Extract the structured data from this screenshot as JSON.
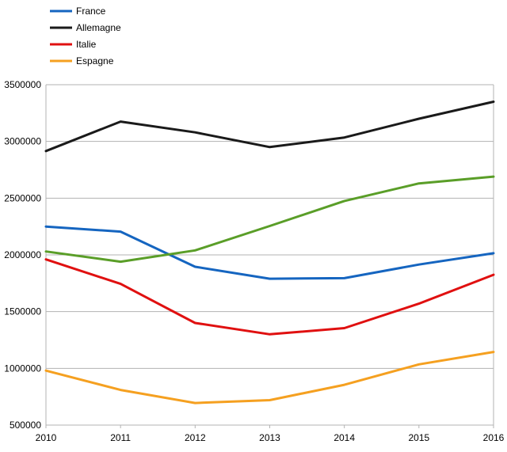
{
  "chart_data": {
    "type": "line",
    "title": "",
    "xlabel": "",
    "ylabel": "",
    "x": [
      2010,
      2011,
      2012,
      2013,
      2014,
      2015,
      2016
    ],
    "x_tick_labels": [
      "2010",
      "2011",
      "2012",
      "2013",
      "2014",
      "2015",
      "2016"
    ],
    "ylim": [
      500000,
      3500000
    ],
    "y_ticks": [
      500000,
      1000000,
      1500000,
      2000000,
      2500000,
      3000000,
      3500000
    ],
    "y_tick_labels": [
      "500000",
      "1000000",
      "1500000",
      "2000000",
      "2500000",
      "3000000",
      "3500000"
    ],
    "grid": "horizontal",
    "legend_position": "top-left",
    "series": [
      {
        "name": "France",
        "color": "#1565c0",
        "values": [
          2250000,
          2205000,
          1895000,
          1790000,
          1795000,
          1915000,
          2015000
        ]
      },
      {
        "name": "Allemagne",
        "color": "#1a1a1a",
        "values": [
          2915000,
          3175000,
          3080000,
          2950000,
          3035000,
          3200000,
          3350000
        ]
      },
      {
        "name": "Italie",
        "color": "#e01010",
        "values": [
          1960000,
          1745000,
          1400000,
          1300000,
          1355000,
          1570000,
          1825000
        ]
      },
      {
        "name": "Espagne",
        "color": "#f5a020",
        "values": [
          980000,
          810000,
          695000,
          720000,
          855000,
          1035000,
          1145000
        ]
      },
      {
        "name": "",
        "color": "#5a9e28",
        "values": [
          2030000,
          1940000,
          2040000,
          2255000,
          2475000,
          2630000,
          2690000
        ]
      }
    ]
  }
}
